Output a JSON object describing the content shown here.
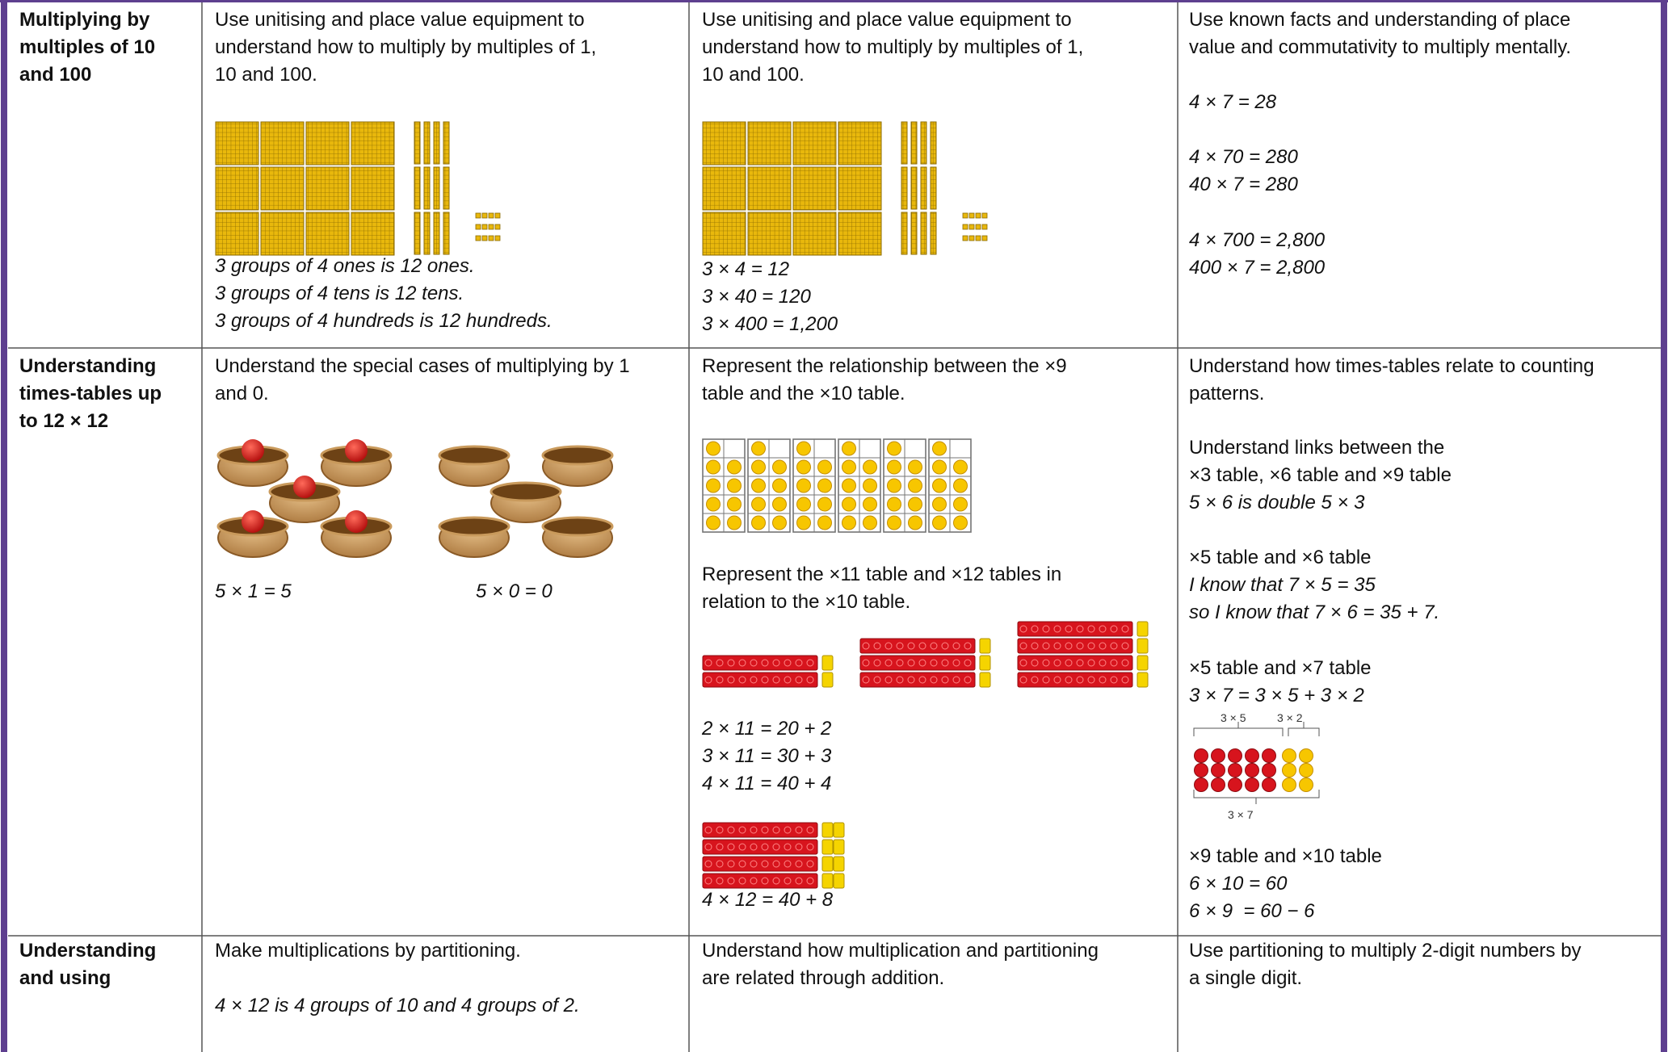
{
  "table": {
    "rows": [
      {
        "heading": [
          "Multiplying by",
          "multiples of 10",
          "and 100"
        ],
        "cells": [
          [
            "Use unitising and place value equipment to",
            "understand how to multiply by multiples of 1,",
            "10 and 100.",
            "3 groups of 4 ones is 12 ones.",
            "3 groups of 4 tens is 12 tens.",
            "3 groups of 4 hundreds is 12 hundreds."
          ],
          [
            "Use unitising and place value equipment to",
            "understand how to multiply by multiples of 1,",
            "10 and 100.",
            "3 × 4 = 12",
            "3 × 40 = 120",
            "3 × 400 = 1,200"
          ],
          [
            "Use known facts and understanding of place",
            "value and commutativity to multiply mentally.",
            "4 × 7 = 28",
            "4 × 70 = 280",
            "40 × 7 = 280",
            "4 × 700 = 2,800",
            "400 × 7 = 2,800"
          ]
        ]
      },
      {
        "heading": [
          "Understanding",
          "times-tables up",
          "to 12 × 12"
        ],
        "cells": [
          [
            "Understand the special cases of multiplying by 1",
            "and 0.",
            "5 × 1 = 5",
            "5 × 0 = 0"
          ],
          [
            "Represent the relationship between the ×9",
            "table and the ×10 table.",
            "Represent the ×11 table and ×12 tables in",
            "relation to the ×10 table.",
            "2 × 11 = 20 + 2",
            "3 × 11 = 30 + 3",
            "4 × 11 = 40 + 4",
            "4 × 12 = 40 + 8"
          ],
          [
            "Understand how times-tables relate to counting",
            "patterns.",
            "Understand links between the",
            "×3 table, ×6 table and ×9 table",
            "5 × 6 is double 5 × 3",
            "×5 table and ×6 table",
            "I know that 7 × 5 = 35",
            "so I know that 7 × 6 = 35 + 7.",
            "×5 table and ×7 table",
            "3 × 7 = 3 × 5 + 3 × 2",
            "3 × 5",
            "3 × 2",
            "3 × 7",
            "×9 table and ×10 table",
            "6 × 10 = 60",
            "6 × 9  = 60 − 6"
          ]
        ]
      },
      {
        "heading": [
          "Understanding",
          "and using"
        ],
        "cells": [
          [
            "Make multiplications by partitioning.",
            "4 × 12 is 4 groups of 10 and 4 groups of 2."
          ],
          [
            "Understand how multiplication and partitioning",
            "are related through addition."
          ],
          [
            "Use partitioning to multiply 2-digit numbers by",
            "a single digit."
          ]
        ]
      }
    ]
  }
}
